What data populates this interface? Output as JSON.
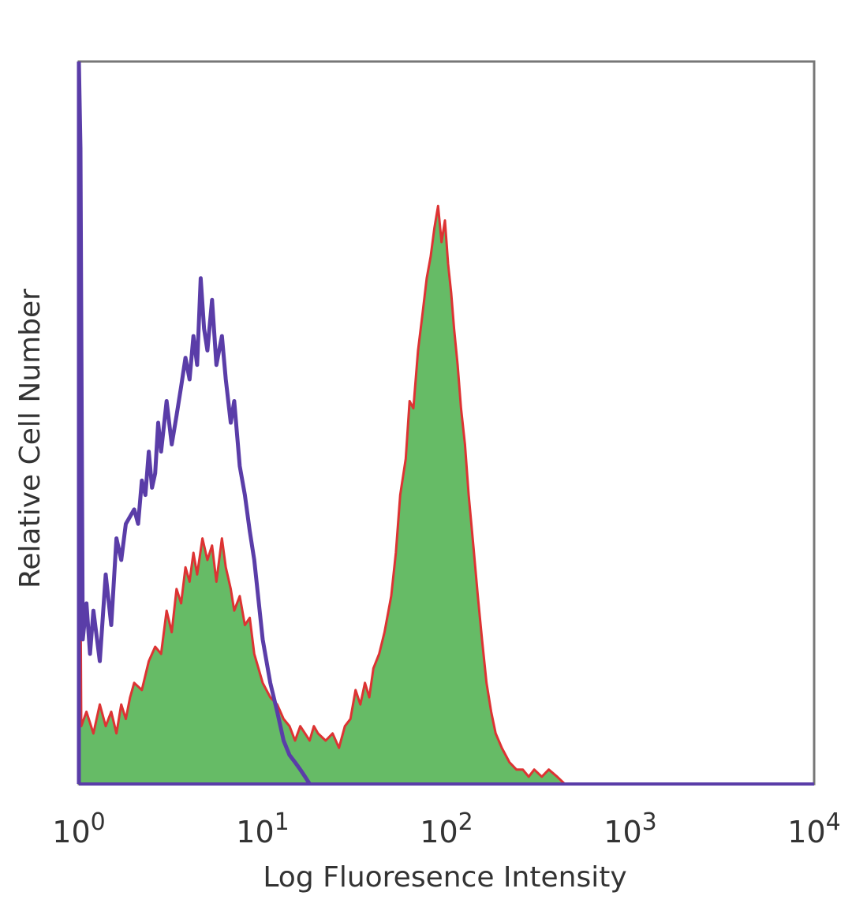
{
  "chart_data": {
    "type": "histogram",
    "x_scale": "log",
    "xlim": [
      1,
      10000
    ],
    "ylim": [
      0,
      100
    ],
    "xlabel": "Log Fluoresence Intensity",
    "ylabel": "Relative Cell Number",
    "x_ticks": [
      {
        "base": "10",
        "exp": "0",
        "value": 1
      },
      {
        "base": "10",
        "exp": "1",
        "value": 10
      },
      {
        "base": "10",
        "exp": "2",
        "value": 100
      },
      {
        "base": "10",
        "exp": "3",
        "value": 1000
      },
      {
        "base": "10",
        "exp": "4",
        "value": 10000
      }
    ],
    "grid": false,
    "series": [
      {
        "style": "filled",
        "fill_color": "#66bb66",
        "line_color": "#dd3333",
        "points": [
          [
            1.0,
            70
          ],
          [
            1.03,
            8
          ],
          [
            1.1,
            10
          ],
          [
            1.2,
            7
          ],
          [
            1.3,
            11
          ],
          [
            1.4,
            8
          ],
          [
            1.5,
            10
          ],
          [
            1.6,
            7
          ],
          [
            1.7,
            11
          ],
          [
            1.8,
            9
          ],
          [
            1.9,
            12
          ],
          [
            2.0,
            14
          ],
          [
            2.2,
            13
          ],
          [
            2.4,
            17
          ],
          [
            2.6,
            19
          ],
          [
            2.8,
            18
          ],
          [
            3.0,
            24
          ],
          [
            3.2,
            21
          ],
          [
            3.4,
            27
          ],
          [
            3.6,
            25
          ],
          [
            3.8,
            30
          ],
          [
            4.0,
            28
          ],
          [
            4.2,
            32
          ],
          [
            4.4,
            29
          ],
          [
            4.7,
            34
          ],
          [
            5.0,
            31
          ],
          [
            5.3,
            33
          ],
          [
            5.6,
            28
          ],
          [
            6.0,
            34
          ],
          [
            6.3,
            30
          ],
          [
            6.7,
            27
          ],
          [
            7.0,
            24
          ],
          [
            7.5,
            26
          ],
          [
            8.0,
            22
          ],
          [
            8.5,
            23
          ],
          [
            9.0,
            18
          ],
          [
            10.0,
            14
          ],
          [
            11.0,
            12
          ],
          [
            12.0,
            11
          ],
          [
            13.0,
            9
          ],
          [
            14.0,
            8
          ],
          [
            15.0,
            6
          ],
          [
            16.0,
            8
          ],
          [
            17.0,
            7
          ],
          [
            18.0,
            6
          ],
          [
            19.0,
            8
          ],
          [
            20.0,
            7
          ],
          [
            22.0,
            6
          ],
          [
            24.0,
            7
          ],
          [
            26.0,
            5
          ],
          [
            28.0,
            8
          ],
          [
            30.0,
            9
          ],
          [
            32.0,
            13
          ],
          [
            34.0,
            11
          ],
          [
            36.0,
            14
          ],
          [
            38.0,
            12
          ],
          [
            40.0,
            16
          ],
          [
            43.0,
            18
          ],
          [
            46.0,
            21
          ],
          [
            50.0,
            26
          ],
          [
            53.0,
            32
          ],
          [
            56.0,
            40
          ],
          [
            60.0,
            45
          ],
          [
            63.0,
            53
          ],
          [
            66.0,
            52
          ],
          [
            70.0,
            60
          ],
          [
            74.0,
            65
          ],
          [
            78.0,
            70
          ],
          [
            82.0,
            73
          ],
          [
            86.0,
            77
          ],
          [
            90.0,
            80
          ],
          [
            94.0,
            75
          ],
          [
            98.0,
            78
          ],
          [
            102.0,
            72
          ],
          [
            106.0,
            68
          ],
          [
            110.0,
            63
          ],
          [
            115.0,
            58
          ],
          [
            120.0,
            52
          ],
          [
            126.0,
            47
          ],
          [
            132.0,
            40
          ],
          [
            140.0,
            33
          ],
          [
            148.0,
            26
          ],
          [
            156.0,
            20
          ],
          [
            165.0,
            14
          ],
          [
            175.0,
            10
          ],
          [
            185.0,
            7
          ],
          [
            200.0,
            5
          ],
          [
            220.0,
            3
          ],
          [
            240.0,
            2
          ],
          [
            260.0,
            2
          ],
          [
            280.0,
            1
          ],
          [
            300.0,
            2
          ],
          [
            330.0,
            1
          ],
          [
            360.0,
            2
          ],
          [
            400.0,
            1
          ],
          [
            440.0,
            0
          ]
        ]
      },
      {
        "style": "line",
        "line_color": "#5a3da8",
        "points": [
          [
            1.0,
            100
          ],
          [
            1.02,
            88
          ],
          [
            1.05,
            20
          ],
          [
            1.1,
            25
          ],
          [
            1.15,
            18
          ],
          [
            1.2,
            24
          ],
          [
            1.3,
            17
          ],
          [
            1.4,
            29
          ],
          [
            1.5,
            22
          ],
          [
            1.6,
            34
          ],
          [
            1.7,
            31
          ],
          [
            1.8,
            36
          ],
          [
            2.0,
            38
          ],
          [
            2.1,
            36
          ],
          [
            2.2,
            42
          ],
          [
            2.3,
            40
          ],
          [
            2.4,
            46
          ],
          [
            2.5,
            41
          ],
          [
            2.6,
            43
          ],
          [
            2.7,
            50
          ],
          [
            2.8,
            46
          ],
          [
            3.0,
            53
          ],
          [
            3.2,
            47
          ],
          [
            3.4,
            51
          ],
          [
            3.6,
            55
          ],
          [
            3.8,
            59
          ],
          [
            4.0,
            56
          ],
          [
            4.2,
            62
          ],
          [
            4.4,
            58
          ],
          [
            4.6,
            70
          ],
          [
            4.8,
            63
          ],
          [
            5.0,
            60
          ],
          [
            5.3,
            67
          ],
          [
            5.6,
            58
          ],
          [
            6.0,
            62
          ],
          [
            6.3,
            56
          ],
          [
            6.7,
            50
          ],
          [
            7.0,
            53
          ],
          [
            7.5,
            44
          ],
          [
            8.0,
            40
          ],
          [
            8.5,
            35
          ],
          [
            9.0,
            31
          ],
          [
            10.0,
            20
          ],
          [
            11.0,
            14
          ],
          [
            12.0,
            10
          ],
          [
            13.0,
            6
          ],
          [
            14.0,
            4
          ],
          [
            15.0,
            3
          ],
          [
            16.0,
            2
          ],
          [
            17.0,
            1
          ],
          [
            18.0,
            0
          ]
        ]
      }
    ]
  }
}
